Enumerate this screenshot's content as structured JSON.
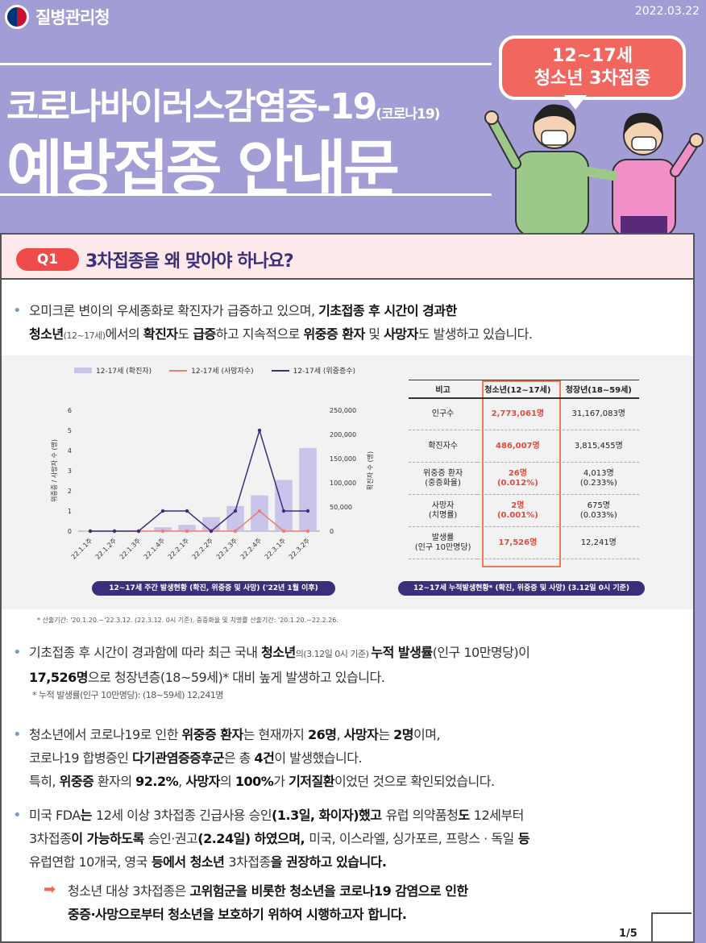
{
  "header": {
    "logo_text": "질병관리청",
    "date": "2022.03.22",
    "title_line1": "코로나바이러스감염증-19",
    "title_line1_suffix": "(코로나19)",
    "title_line2": "예방접종 안내문",
    "bubble_line1": "12~17세",
    "bubble_line2": "청소년 3차접종"
  },
  "q1": {
    "badge": "Q1",
    "question": "3차접종을 왜 맞아야 하나요?"
  },
  "intro": {
    "line1_a": "오미크론 변이의 우세종화로 확진자가 급증하고 있으며, ",
    "line1_b": "기초접종 후 시간이 경과한",
    "line2_a": "청소년",
    "line2_b": "(12~17세)",
    "line2_c": "에서의 ",
    "line2_d": "확진자",
    "line2_e": "도 ",
    "line2_f": "급증",
    "line2_g": "하고 지속적으로 ",
    "line2_h": "위중증 환자",
    "line2_i": " 및 ",
    "line2_j": "사망자",
    "line2_k": "도 발생하고 있습니다."
  },
  "chart_data": {
    "type": "bar",
    "categories": [
      "22.1.1주",
      "22.1.2주",
      "22.1.3주",
      "22.1.4주",
      "22.2.1주",
      "22.2.2주",
      "22.2.3주",
      "22.2.4주",
      "22.3.1주",
      "22.3.2주"
    ],
    "series": [
      {
        "name": "12-17세 (확진자)",
        "kind": "bar",
        "axis": "right",
        "values": [
          300,
          1000,
          1500,
          8000,
          13000,
          29000,
          52000,
          74000,
          106000,
          172000
        ]
      },
      {
        "name": "12-17세 (사망자수)",
        "kind": "line",
        "axis": "left",
        "values": [
          0,
          0,
          0,
          0,
          0,
          0,
          0,
          1,
          0,
          0
        ]
      },
      {
        "name": "12-17세 (위중증수)",
        "kind": "line",
        "axis": "left",
        "values": [
          0,
          0,
          0,
          1,
          1,
          0,
          1,
          5,
          1,
          1
        ]
      }
    ],
    "ylabel_left": "위중증 / 사망자 수 (명)",
    "ylabel_right": "확진자 수 (명)",
    "ylim_left": [
      0,
      6
    ],
    "yticks_left": [
      "0",
      "1",
      "2",
      "3",
      "4",
      "5",
      "6"
    ],
    "ylim_right": [
      0,
      250000
    ],
    "yticks_right": [
      "0",
      "50,000",
      "100,000",
      "150,000",
      "200,000",
      "250,000"
    ],
    "caption": "12~17세 주간 발생현황 (확진, 위중증 및 사망) ('22년 1월 이후)",
    "colors": {
      "bar": "#c9c4ea",
      "deaths": "#f27b6e",
      "severe": "#3b2f7a"
    }
  },
  "table": {
    "headers": [
      "비고",
      "청소년(12~17세)",
      "청장년(18~59세)"
    ],
    "rows": [
      {
        "label": "인구수",
        "teen": "2,773,061명",
        "adult": "31,167,083명"
      },
      {
        "label": "확진자수",
        "teen": "486,007명",
        "adult": "3,815,455명"
      },
      {
        "label": "위중증 환자\n(중증화율)",
        "teen": "26명\n(0.012%)",
        "adult": "4,013명\n(0.233%)"
      },
      {
        "label": "사망자\n(치명률)",
        "teen": "2명\n(0.001%)",
        "adult": "675명\n(0.033%)"
      },
      {
        "label": "발생률\n(인구 10만명당)",
        "teen": "17,526명",
        "adult": "12,241명"
      }
    ],
    "caption": "12~17세 누적발생현황* (확진, 위중증 및 사망) (3.12일 0시 기준)"
  },
  "footnote": "* 산출기간: '20.1.20.~'22.3.12. (22.3.12. 0시 기준), 중증화율 및 치명률 산출기간: '20.1.20.~22.2.26.",
  "para2": {
    "a": "기초접종 후 시간이 경과함에 따라 최근 국내 ",
    "b": "청소년",
    "c": "의(3.12일 0시 기준) ",
    "d": "누적 발생률",
    "e": "(인구 10만명당)이",
    "f": "17,526명",
    "g": "으로 청장년층(18~59세)* 대비 높게 발생하고 있습니다.",
    "note": "* 누적 발생률(인구 10만명당): (18~59세) 12,241명"
  },
  "para3": {
    "line1": [
      "청소년에서 코로나19로 인한 ",
      "위중증 환자",
      "는 현재까지 ",
      "26명",
      ", ",
      "사망자",
      "는 ",
      "2명",
      "이며,"
    ],
    "line2": [
      "코로나19 합병증인 ",
      "다기관염증증후군",
      "은 총 ",
      "4건",
      "이 발생했습니다."
    ],
    "line3": [
      "특히, ",
      "위중증",
      " 환자의 ",
      "92.2%",
      ", ",
      "사망자",
      "의 ",
      "100%",
      "가 ",
      "기저질환",
      "이었던 것으로 확인되었습니다."
    ]
  },
  "para4": {
    "line1": [
      "미국 FDA",
      "는 ",
      "12세 이상 3차접종 긴급사용 승인",
      "(1.3일, 화이자)했고 ",
      "유럽 의약품청",
      "도 ",
      "12세부터"
    ],
    "line2": [
      "3차접종",
      "이 가능하도록 ",
      "승인·권고",
      "(2.24일) 하였으며, ",
      "미국, 이스라엘, 싱가포르, 프랑스 · 독일",
      " 등"
    ],
    "line3": [
      "유럽연합 10개국, 영국",
      " 등에서 청소년 ",
      "3차접종",
      "을 권장하고 있습니다."
    ]
  },
  "conclusion": {
    "line1_a": "청소년 대상 3차접종은 ",
    "line1_b": "고위험군을 비롯한 청소년을 코로나19 감염으로 인한",
    "line2": "중증·사망으로부터 청소년을 보호하기 위하여 시행하고자 합니다."
  },
  "page": "1/5"
}
